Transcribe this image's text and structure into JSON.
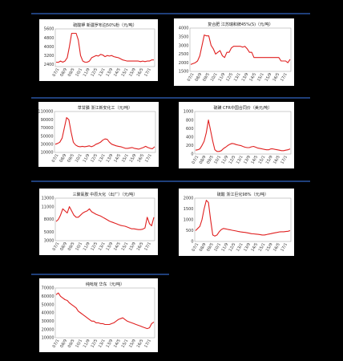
{
  "chart_data": [
    {
      "type": "line",
      "title": "硫酸钾 新疆罗布泊50%粉（元/吨）",
      "ylim": [
        2200,
        5600
      ],
      "y_ticks": [
        "5600",
        "4800",
        "4000",
        "3200",
        "2400"
      ],
      "x_ticks": [
        "07/1",
        "08/9",
        "09/5",
        "10/1",
        "11/9",
        "12/5",
        "13/1",
        "13/9",
        "14/5",
        "15/1",
        "15/9",
        "16/5",
        "17/1"
      ],
      "series": [
        {
          "values": [
            2600,
            2580,
            2700,
            2600,
            2700,
            3000,
            4000,
            5200,
            5200,
            5200,
            4600,
            3200,
            2700,
            2600,
            2600,
            2700,
            3000,
            3100,
            3200,
            3150,
            3300,
            3250,
            3100,
            3200,
            3150,
            3200,
            3100,
            3050,
            3000,
            2900,
            2800,
            2750,
            2700,
            2700,
            2700,
            2700,
            2700,
            2700,
            2650,
            2700,
            2650,
            2700,
            2700,
            2800,
            2800
          ]
        }
      ],
      "grid": false,
      "color": "#e02020"
    },
    {
      "type": "line",
      "title": "复合肥 江苏瑞和牌45%(S)（元/吨）",
      "ylim": [
        1500,
        4000
      ],
      "y_ticks": [
        "4000",
        "3500",
        "3000",
        "2500",
        "2000",
        "1500"
      ],
      "x_ticks": [
        "07/1",
        "08/9",
        "09/5",
        "10/1",
        "11/9",
        "12/5",
        "13/1",
        "13/9",
        "14/5",
        "15/1",
        "15/9",
        "16/5",
        "17/1"
      ],
      "series": [
        {
          "values": [
            1900,
            1950,
            2000,
            2100,
            2400,
            3000,
            3600,
            3550,
            3550,
            3000,
            2800,
            2500,
            2600,
            2700,
            2400,
            2300,
            2600,
            2600,
            2850,
            2950,
            2950,
            2950,
            2950,
            2900,
            2950,
            2800,
            2600,
            2600,
            2300,
            2300,
            2300,
            2300,
            2300,
            2300,
            2300,
            2300,
            2300,
            2300,
            2300,
            2300,
            2100,
            2100,
            2100,
            2000,
            2200
          ]
        }
      ],
      "grid": false,
      "color": "#e02020"
    },
    {
      "type": "line",
      "title": "草甘膦 浙江新安化工（元/吨）",
      "ylim": [
        10000,
        110000
      ],
      "y_ticks": [
        "110000",
        "90000",
        "70000",
        "50000",
        "30000",
        "10000"
      ],
      "x_ticks": [
        "07/1",
        "08/9",
        "09/5",
        "10/1",
        "11/9",
        "12/5",
        "13/1",
        "13/9",
        "14/5",
        "15/1",
        "15/9",
        "16/5",
        "17/1"
      ],
      "series": [
        {
          "values": [
            30000,
            32000,
            35000,
            45000,
            70000,
            95000,
            90000,
            60000,
            35000,
            28000,
            25000,
            24000,
            25000,
            24000,
            25000,
            26000,
            24000,
            26000,
            30000,
            32000,
            35000,
            40000,
            43000,
            42000,
            35000,
            30000,
            28000,
            26000,
            25000,
            24000,
            22000,
            20000,
            20000,
            21000,
            22000,
            20000,
            19000,
            18000,
            20000,
            22000,
            25000,
            22000,
            20000,
            19000,
            24000
          ]
        }
      ],
      "grid": false,
      "color": "#e02020"
    },
    {
      "type": "line",
      "title": "硫磺 CFR中国合同价（美元/吨）",
      "ylim": [
        0,
        1000
      ],
      "y_ticks": [
        "1000",
        "800",
        "600",
        "400",
        "200",
        "0"
      ],
      "x_ticks": [
        "07/1",
        "08/9",
        "09/5",
        "10/1",
        "11/9",
        "12/5",
        "13/1",
        "13/9",
        "14/5",
        "15/1",
        "15/9",
        "16/5",
        "17/1"
      ],
      "series": [
        {
          "values": [
            90,
            100,
            120,
            200,
            300,
            500,
            800,
            550,
            300,
            100,
            60,
            60,
            80,
            130,
            160,
            200,
            230,
            250,
            240,
            220,
            210,
            200,
            180,
            160,
            150,
            150,
            170,
            180,
            160,
            140,
            130,
            120,
            110,
            100,
            100,
            120,
            120,
            110,
            100,
            90,
            80,
            80,
            90,
            100,
            120
          ]
        }
      ],
      "grid": false,
      "color": "#e02020"
    },
    {
      "type": "line",
      "title": "三聚氰胺 中原大化（出厂）（元/吨）",
      "ylim": [
        3000,
        13000
      ],
      "y_ticks": [
        "13000",
        "11000",
        "8000",
        "5000",
        "3000"
      ],
      "x_ticks": [
        "07/1",
        "08/9",
        "09/5",
        "10/1",
        "11/9",
        "12/5",
        "13/1",
        "13/9",
        "14/5",
        "15/1",
        "15/9",
        "16/5",
        "17/1"
      ],
      "series": [
        {
          "values": [
            7500,
            8000,
            9000,
            10500,
            10000,
            9500,
            11000,
            10000,
            9000,
            8500,
            8500,
            9000,
            9500,
            9800,
            10000,
            10500,
            9800,
            9500,
            9200,
            9000,
            8800,
            8500,
            8200,
            7900,
            7600,
            7400,
            7200,
            7000,
            6800,
            6600,
            6500,
            6400,
            6200,
            6000,
            5800,
            5800,
            5700,
            5600,
            5600,
            5700,
            6000,
            8500,
            7000,
            6500,
            8500
          ]
        }
      ],
      "grid": false,
      "color": "#e02020"
    },
    {
      "type": "line",
      "title": "硫酸 浙江巨化98%（元/吨）",
      "ylim": [
        0,
        2000
      ],
      "y_ticks": [
        "2000",
        "1500",
        "1000",
        "500",
        "0"
      ],
      "x_ticks": [
        "07/1",
        "08/9",
        "09/5",
        "10/1",
        "11/9",
        "12/5",
        "13/1",
        "13/9",
        "14/5",
        "15/1",
        "15/9",
        "16/5",
        "17/1"
      ],
      "series": [
        {
          "values": [
            500,
            600,
            700,
            1000,
            1500,
            1900,
            1800,
            1000,
            300,
            250,
            300,
            450,
            550,
            600,
            580,
            560,
            540,
            520,
            500,
            480,
            460,
            440,
            430,
            420,
            400,
            380,
            360,
            350,
            340,
            330,
            320,
            300,
            300,
            320,
            340,
            360,
            380,
            400,
            420,
            440,
            450,
            450,
            460,
            470,
            500
          ]
        }
      ],
      "grid": false,
      "color": "#e02020"
    },
    {
      "type": "line",
      "title": "纯吡啶 华东（元/吨）",
      "ylim": [
        10000,
        70000
      ],
      "y_ticks": [
        "70000",
        "60000",
        "50000",
        "40000",
        "30000",
        "20000",
        "10000"
      ],
      "x_ticks": [
        "07/1",
        "08/9",
        "09/5",
        "10/1",
        "11/9",
        "12/5",
        "13/1",
        "13/9",
        "14/5",
        "15/1",
        "15/9",
        "16/5",
        "17/1"
      ],
      "series": [
        {
          "values": [
            62000,
            64000,
            60000,
            58000,
            56000,
            55000,
            52000,
            50000,
            48000,
            46000,
            42000,
            40000,
            38000,
            36000,
            34000,
            32000,
            30000,
            30000,
            28000,
            28000,
            27000,
            27000,
            26000,
            26000,
            26000,
            27000,
            28000,
            30000,
            32000,
            33000,
            34000,
            32000,
            30000,
            29000,
            28000,
            27000,
            26000,
            25000,
            24000,
            23000,
            22000,
            21000,
            22000,
            27000,
            29000
          ]
        }
      ],
      "grid": false,
      "color": "#e02020"
    }
  ]
}
